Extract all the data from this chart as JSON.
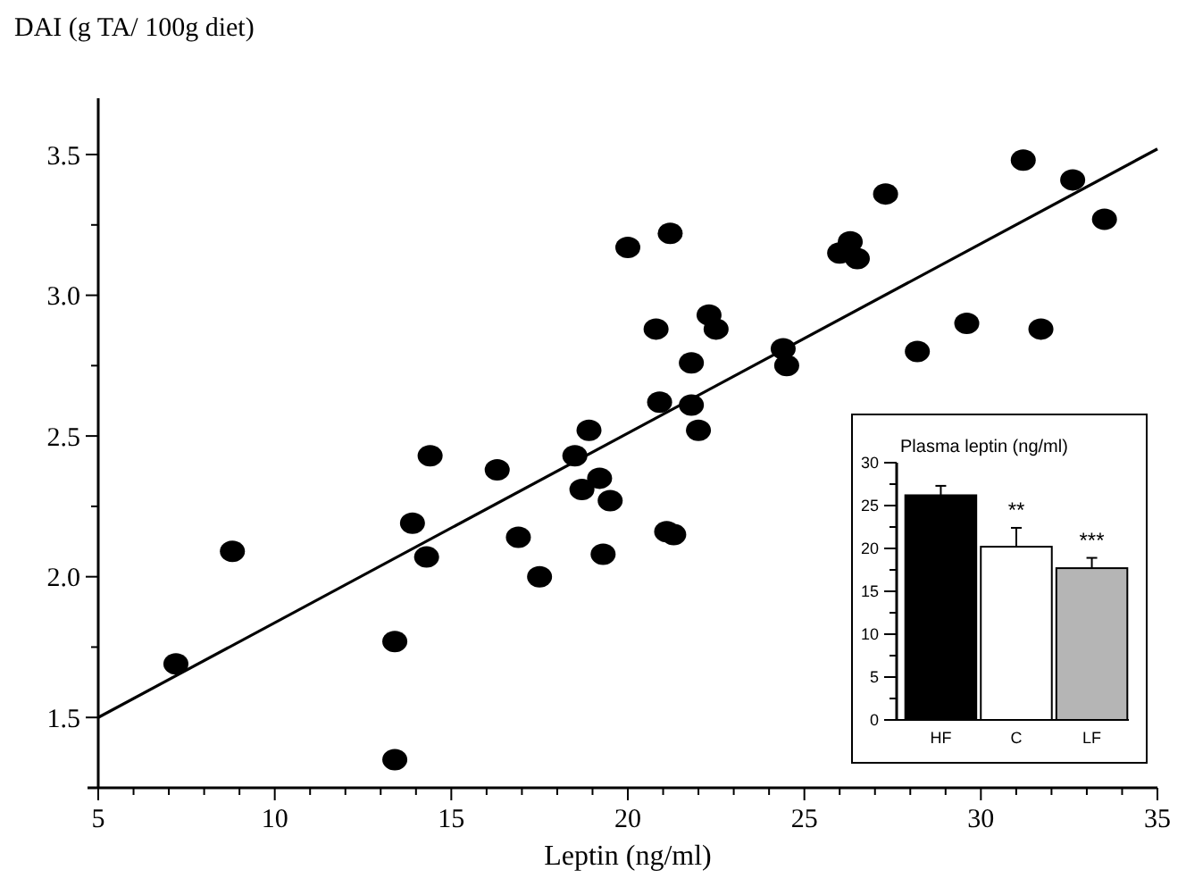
{
  "chart_data": [
    {
      "type": "scatter",
      "title": "DAI (g TA/ 100g diet)",
      "xlabel": "Leptin (ng/ml)",
      "xlim": [
        5,
        35
      ],
      "ylim": [
        1.25,
        3.7
      ],
      "xticks": [
        5,
        {
          "value": 6,
          "label": null
        },
        {
          "value": 7,
          "label": null
        },
        {
          "value": 8,
          "label": null
        },
        {
          "value": 9,
          "label": null
        },
        10,
        {
          "value": 11,
          "label": null
        },
        {
          "value": 12,
          "label": null
        },
        {
          "value": 13,
          "label": null
        },
        {
          "value": 14,
          "label": null
        },
        15,
        {
          "value": 16,
          "label": null
        },
        {
          "value": 17,
          "label": null
        },
        {
          "value": 18,
          "label": null
        },
        {
          "value": 19,
          "label": null
        },
        20,
        {
          "value": 21,
          "label": null
        },
        {
          "value": 22,
          "label": null
        },
        {
          "value": 23,
          "label": null
        },
        {
          "value": 24,
          "label": null
        },
        25,
        {
          "value": 26,
          "label": null
        },
        {
          "value": 27,
          "label": null
        },
        {
          "value": 28,
          "label": null
        },
        {
          "value": 29,
          "label": null
        },
        30,
        {
          "value": 31,
          "label": null
        },
        {
          "value": 32,
          "label": null
        },
        {
          "value": 33,
          "label": null
        },
        {
          "value": 34,
          "label": null
        },
        35
      ],
      "yticks": [
        {
          "value": 1.5,
          "label": "1.5"
        },
        {
          "value": 1.75,
          "label": null
        },
        {
          "value": 2,
          "label": "2.0"
        },
        {
          "value": 2.25,
          "label": null
        },
        {
          "value": 2.5,
          "label": "2.5"
        },
        {
          "value": 2.75,
          "label": null
        },
        {
          "value": 3,
          "label": "3.0"
        },
        {
          "value": 3.25,
          "label": null
        },
        {
          "value": 3.5,
          "label": "3.5"
        }
      ],
      "series": [
        {
          "type": "scatter",
          "color": "#000000",
          "marker": "circle",
          "x": [
            7.2,
            8.8,
            13.4,
            13.4,
            13.9,
            14.3,
            14.4,
            16.3,
            16.9,
            17.5,
            18.5,
            18.9,
            18.7,
            19.2,
            19.5,
            19.3,
            20.0,
            20.8,
            20.9,
            21.2,
            21.1,
            21.3,
            21.8,
            22.0,
            22.3,
            22.5,
            21.8,
            24.4,
            24.5,
            26.0,
            26.3,
            26.5,
            27.3,
            28.2,
            29.6,
            31.2,
            31.7,
            32.6,
            33.5
          ],
          "values": [
            1.69,
            2.09,
            1.77,
            1.35,
            2.19,
            2.07,
            2.43,
            2.38,
            2.14,
            2.0,
            2.43,
            2.52,
            2.31,
            2.35,
            2.27,
            2.08,
            3.17,
            2.88,
            2.62,
            3.22,
            2.16,
            2.15,
            2.76,
            2.52,
            2.93,
            2.88,
            2.61,
            2.81,
            2.75,
            3.15,
            3.19,
            3.13,
            3.36,
            2.8,
            2.9,
            3.48,
            2.88,
            3.41,
            3.27
          ]
        },
        {
          "type": "line",
          "color": "#000000",
          "x": [
            5,
            35
          ],
          "values": [
            1.5,
            3.52
          ]
        }
      ]
    },
    {
      "type": "bar",
      "title": "Plasma leptin (ng/ml)",
      "categories": [
        "HF",
        "C",
        "LF"
      ],
      "values": [
        26.2,
        20.2,
        17.7
      ],
      "colors": [
        "#000000",
        "#ffffff",
        "#b5b5b5"
      ],
      "errors": [
        1.1,
        2.2,
        1.2
      ],
      "ylim": [
        0,
        30
      ],
      "yticks": [
        0,
        {
          "value": 2.5,
          "label": null
        },
        5,
        {
          "value": 7.5,
          "label": null
        },
        10,
        {
          "value": 12.5,
          "label": null
        },
        15,
        {
          "value": 17.5,
          "label": null
        },
        20,
        {
          "value": 22.5,
          "label": null
        },
        25,
        {
          "value": 27.5,
          "label": null
        },
        30
      ],
      "annotations": [
        {
          "text": "**",
          "x": "C",
          "y": 22.4
        },
        {
          "text": "***",
          "x": "LF",
          "y": 18.9
        }
      ]
    }
  ]
}
